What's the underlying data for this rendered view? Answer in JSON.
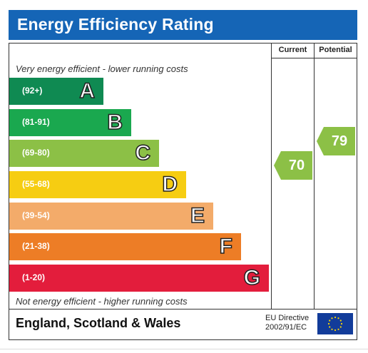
{
  "title": "Energy Efficiency Rating",
  "columns": {
    "current": "Current",
    "potential": "Potential"
  },
  "top_caption": "Very energy efficient - lower running costs",
  "bottom_caption": "Not energy efficient - higher running costs",
  "bands": [
    {
      "range": "(92+)",
      "letter": "A",
      "color": "#0f8a52"
    },
    {
      "range": "(81-91)",
      "letter": "B",
      "color": "#1aa84f"
    },
    {
      "range": "(69-80)",
      "letter": "C",
      "color": "#8cc046"
    },
    {
      "range": "(55-68)",
      "letter": "D",
      "color": "#f6cd12"
    },
    {
      "range": "(39-54)",
      "letter": "E",
      "color": "#f3ab6a"
    },
    {
      "range": "(21-38)",
      "letter": "F",
      "color": "#ed7d26"
    },
    {
      "range": "(1-20)",
      "letter": "G",
      "color": "#e31d3c"
    }
  ],
  "current": {
    "value": "70",
    "color": "#8cc046"
  },
  "potential": {
    "value": "79",
    "color": "#8cc046"
  },
  "footer": {
    "region": "England, Scotland & Wales",
    "directive_line1": "EU Directive",
    "directive_line2": "2002/91/EC"
  },
  "icons": {
    "eu_flag": "eu-flag-icon"
  }
}
